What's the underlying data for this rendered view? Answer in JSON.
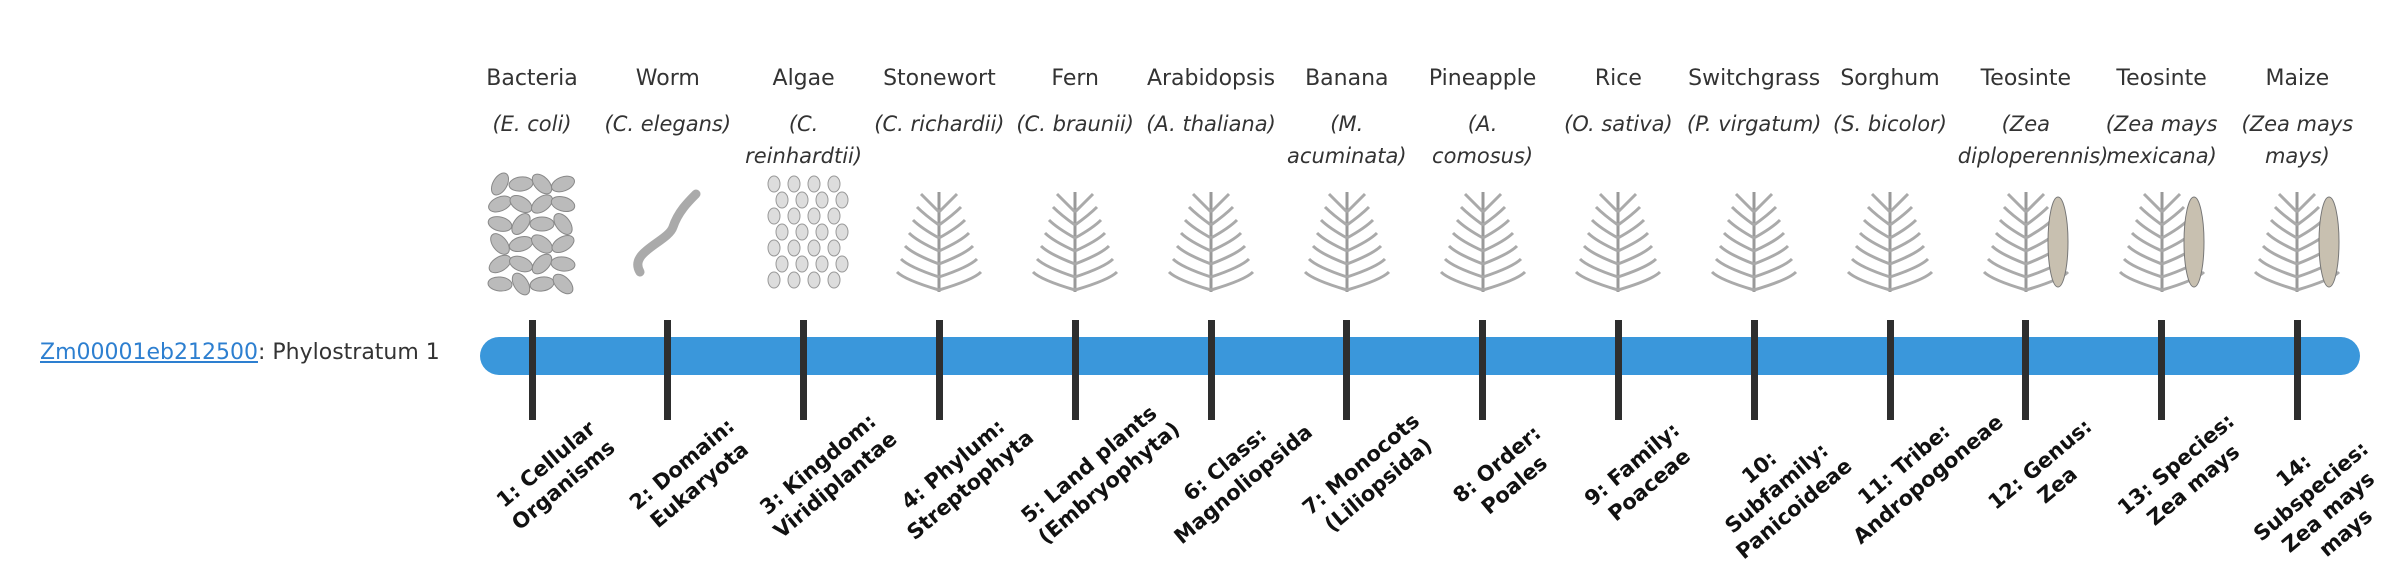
{
  "gene": {
    "id": "Zm00001eb212500",
    "label": ": Phylostratum 1"
  },
  "organisms": [
    {
      "name": "Bacteria",
      "latin": "(E. coli)",
      "stratum": "1: Cellular Organisms"
    },
    {
      "name": "Worm",
      "latin": "(C. elegans)",
      "stratum": "2: Domain: Eukaryota"
    },
    {
      "name": "Algae",
      "latin": "(C. reinhardtii)",
      "stratum": "3: Kingdom: Viridiplantae"
    },
    {
      "name": "Stonewort",
      "latin": "(C. richardii)",
      "stratum": "4: Phylum: Streptophyta"
    },
    {
      "name": "Fern",
      "latin": "(C. braunii)",
      "stratum": "5: Land plants (Embryophyta)"
    },
    {
      "name": "Arabidopsis",
      "latin": "(A. thaliana)",
      "stratum": "6: Class: Magnoliopsida"
    },
    {
      "name": "Banana",
      "latin": "(M. acuminata)",
      "stratum": "7: Monocots (Liliopsida)"
    },
    {
      "name": "Pineapple",
      "latin": "(A. comosus)",
      "stratum": "8: Order: Poales"
    },
    {
      "name": "Rice",
      "latin": "(O. sativa)",
      "stratum": "9: Family: Poaceae"
    },
    {
      "name": "Switchgrass",
      "latin": "(P. virgatum)",
      "stratum": "10: Subfamily: Panicoideae"
    },
    {
      "name": "Sorghum",
      "latin": "(S. bicolor)",
      "stratum": "11: Tribe: Andropogoneae"
    },
    {
      "name": "Teosinte",
      "latin": "(Zea diploperennis)",
      "stratum": "12: Genus: Zea"
    },
    {
      "name": "Teosinte",
      "latin": "(Zea mays mexicana)",
      "stratum": "13: Species: Zea mays"
    },
    {
      "name": "Maize",
      "latin": "(Zea mays mays)",
      "stratum": "14: Subspecies: Zea mays mays"
    }
  ]
}
